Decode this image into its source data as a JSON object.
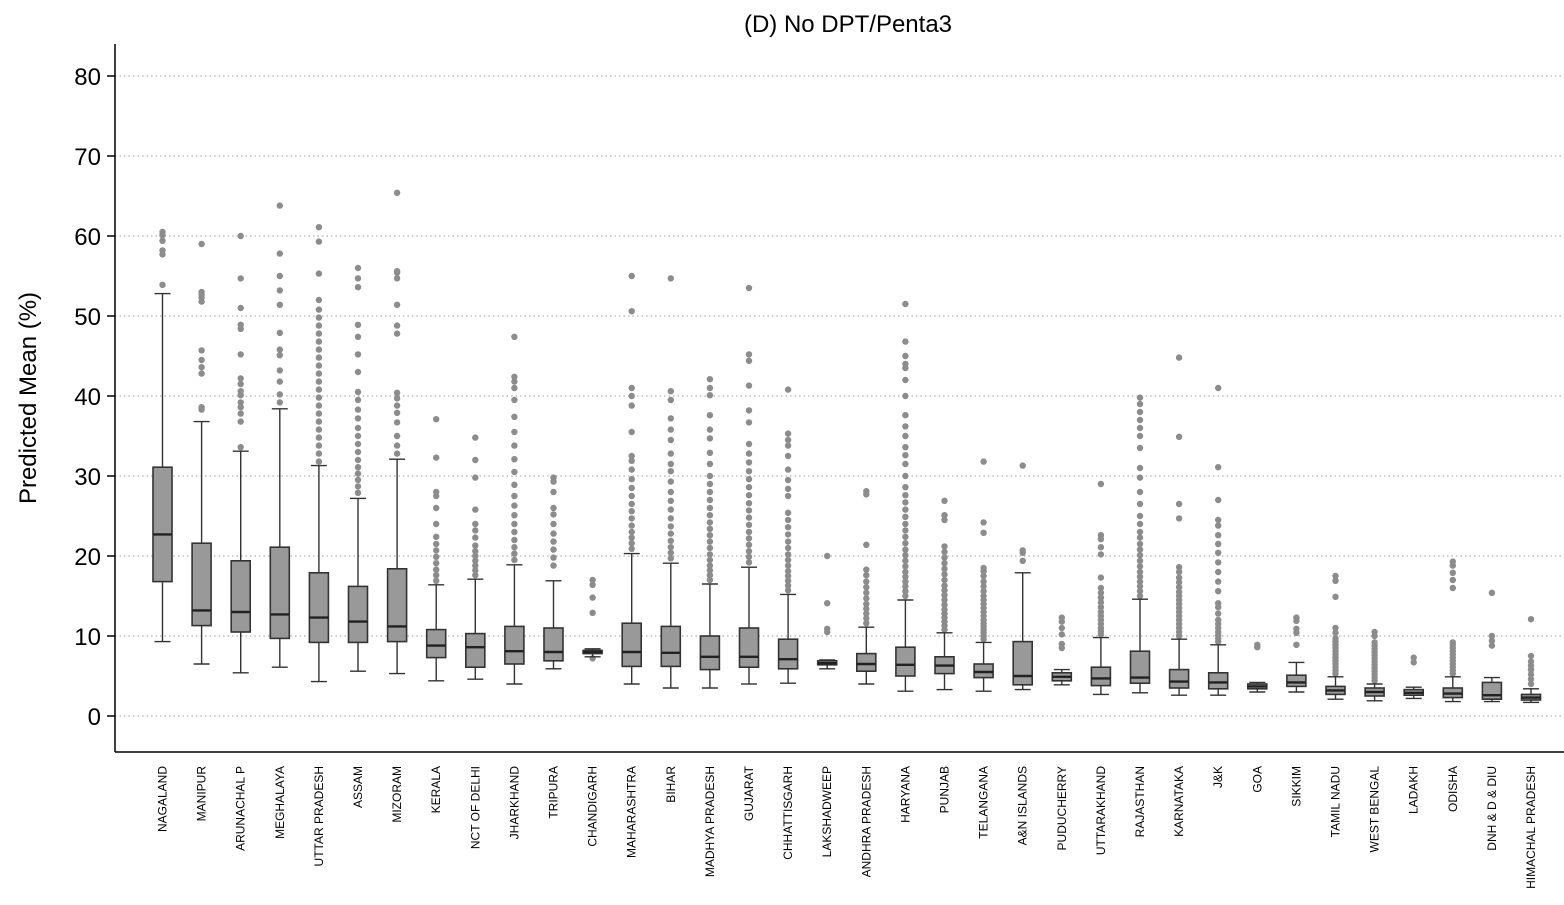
{
  "chart_data": {
    "type": "boxplot",
    "title": "(D) No DPT/Penta3",
    "xlabel": "",
    "ylabel": "Predicted Mean (%)",
    "ylim": [
      -4.5,
      84
    ],
    "yticks": [
      0,
      10,
      20,
      30,
      40,
      50,
      60,
      70,
      80
    ],
    "grid": "horizontal-dotted",
    "box_color": "#999999",
    "outlier_color": "#8c8c8c",
    "line_color": "#333333",
    "categories": [
      "NAGALAND",
      "MANIPUR",
      "ARUNACHAL P",
      "MEGHALAYA",
      "UTTAR PRADESH",
      "ASSAM",
      "MIZORAM",
      "KERALA",
      "NCT OF DELHI",
      "JHARKHAND",
      "TRIPURA",
      "CHANDIGARH",
      "MAHARASHTRA",
      "BIHAR",
      "MADHYA PRADESH",
      "GUJARAT",
      "CHHATTISGARH",
      "LAKSHADWEEP",
      "ANDHRA PRADESH",
      "HARYANA",
      "PUNJAB",
      "TELANGANA",
      "A&N ISLANDS",
      "PUDUCHERRY",
      "UTTARAKHAND",
      "RAJASTHAN",
      "KARNATAKA",
      "J&K",
      "GOA",
      "SIKKIM",
      "TAMIL NADU",
      "WEST BENGAL",
      "LADAKH",
      "ODISHA",
      "DNH & D & DIU",
      "HIMACHAL PRADESH"
    ],
    "boxes": [
      {
        "min": 9.3,
        "q1": 16.8,
        "median": 22.7,
        "q3": 31.1,
        "max": 52.8,
        "outliers": [
          53.9,
          57.7,
          58.2,
          59.4,
          60.1,
          60.5
        ]
      },
      {
        "min": 6.5,
        "q1": 11.3,
        "median": 13.2,
        "q3": 21.6,
        "max": 36.8,
        "outliers": [
          38.3,
          38.6,
          42.8,
          43.6,
          44.5,
          45.7,
          51.8,
          52.3,
          52.7,
          53.0,
          59.0
        ]
      },
      {
        "min": 5.4,
        "q1": 10.5,
        "median": 13.0,
        "q3": 19.4,
        "max": 33.1,
        "outliers": [
          33.6,
          36.8,
          37.8,
          38.6,
          39.2,
          40.1,
          40.6,
          41.5,
          42.2,
          45.2,
          48.4,
          48.9,
          51.0,
          54.7,
          60.0
        ]
      },
      {
        "min": 6.1,
        "q1": 9.7,
        "median": 12.7,
        "q3": 21.1,
        "max": 38.4,
        "outliers": [
          39.2,
          40.2,
          41.8,
          43.2,
          45.1,
          45.8,
          47.9,
          51.4,
          53.2,
          55.0,
          57.8,
          63.8
        ]
      },
      {
        "min": 4.3,
        "q1": 9.2,
        "median": 12.3,
        "q3": 17.9,
        "max": 31.3,
        "outliers": [
          31.8,
          32.8,
          33.8,
          34.8,
          35.8,
          36.8,
          37.8,
          38.8,
          39.8,
          40.8,
          41.8,
          42.8,
          43.8,
          44.8,
          45.8,
          46.8,
          47.8,
          48.8,
          49.8,
          50.8,
          52.0,
          55.3,
          59.3,
          61.1
        ]
      },
      {
        "min": 5.6,
        "q1": 9.2,
        "median": 11.8,
        "q3": 16.2,
        "max": 27.2,
        "outliers": [
          27.9,
          28.7,
          29.5,
          30.3,
          31.1,
          32.0,
          33.0,
          34.0,
          35.0,
          36.0,
          37.2,
          38.3,
          39.5,
          40.5,
          43.0,
          45.2,
          47.4,
          48.9,
          53.6,
          54.7,
          56.0
        ]
      },
      {
        "min": 5.3,
        "q1": 9.3,
        "median": 11.2,
        "q3": 18.4,
        "max": 32.1,
        "outliers": [
          32.8,
          33.8,
          35.0,
          36.7,
          37.9,
          38.8,
          39.7,
          40.4,
          47.8,
          48.8,
          51.4,
          54.7,
          55.4,
          55.6,
          65.4
        ]
      },
      {
        "min": 4.4,
        "q1": 7.3,
        "median": 8.8,
        "q3": 10.8,
        "max": 16.4,
        "outliers": [
          16.9,
          17.6,
          18.3,
          19.1,
          19.9,
          20.7,
          21.5,
          22.4,
          24.0,
          26.0,
          27.5,
          28.0,
          32.3,
          37.1
        ]
      },
      {
        "min": 4.6,
        "q1": 6.1,
        "median": 8.6,
        "q3": 10.3,
        "max": 17.1,
        "outliers": [
          17.6,
          18.2,
          18.8,
          19.4,
          20.0,
          20.6,
          21.3,
          22.3,
          23.2,
          24.0,
          25.8,
          29.8,
          32.0,
          34.8
        ]
      },
      {
        "min": 4.0,
        "q1": 6.5,
        "median": 8.1,
        "q3": 11.2,
        "max": 18.9,
        "outliers": [
          19.5,
          20.3,
          21.1,
          22.0,
          23.0,
          24.0,
          25.1,
          26.3,
          27.5,
          28.9,
          30.5,
          32.1,
          33.8,
          35.5,
          37.4,
          39.5,
          41.0,
          41.8,
          42.4,
          47.4
        ]
      },
      {
        "min": 5.9,
        "q1": 6.9,
        "median": 8.0,
        "q3": 11.0,
        "max": 16.9,
        "outliers": [
          18.8,
          19.8,
          20.8,
          21.8,
          22.8,
          24.0,
          25.2,
          26.0,
          28.0,
          29.3,
          29.8
        ]
      },
      {
        "min": 7.4,
        "q1": 7.8,
        "median": 8.0,
        "q3": 8.2,
        "max": 8.4,
        "outliers": [
          7.2,
          12.9,
          14.8,
          16.4,
          17.0
        ]
      },
      {
        "min": 4.0,
        "q1": 6.2,
        "median": 8.0,
        "q3": 11.6,
        "max": 20.3,
        "outliers": [
          20.9,
          21.6,
          22.3,
          23.0,
          23.8,
          24.7,
          25.6,
          26.5,
          27.5,
          28.5,
          29.6,
          30.8,
          31.9,
          32.5,
          35.5,
          38.8,
          40.0,
          41.0,
          50.6,
          55.0
        ]
      },
      {
        "min": 3.5,
        "q1": 6.2,
        "median": 7.9,
        "q3": 11.2,
        "max": 19.1,
        "outliers": [
          19.7,
          20.4,
          21.1,
          21.9,
          22.8,
          23.7,
          24.7,
          25.8,
          26.9,
          28.0,
          29.3,
          30.6,
          31.5,
          32.8,
          34.5,
          35.8,
          37.2,
          39.5,
          40.6,
          54.7
        ]
      },
      {
        "min": 3.5,
        "q1": 5.8,
        "median": 7.4,
        "q3": 10.0,
        "max": 16.5,
        "outliers": [
          17.0,
          17.6,
          18.2,
          18.8,
          19.5,
          20.2,
          21.0,
          21.8,
          22.6,
          23.4,
          24.2,
          25.1,
          26.0,
          27.0,
          28.0,
          29.0,
          30.0,
          31.5,
          32.9,
          34.7,
          35.8,
          37.6,
          40.1,
          41.0,
          42.1
        ]
      },
      {
        "min": 4.0,
        "q1": 6.1,
        "median": 7.4,
        "q3": 11.0,
        "max": 18.6,
        "outliers": [
          19.2,
          19.9,
          20.6,
          21.4,
          22.2,
          23.0,
          23.9,
          24.8,
          25.7,
          26.6,
          27.6,
          28.6,
          29.6,
          30.6,
          31.7,
          32.8,
          34.0,
          36.7,
          38.2,
          41.3,
          44.4,
          45.2,
          53.5
        ]
      },
      {
        "min": 4.1,
        "q1": 5.9,
        "median": 7.1,
        "q3": 9.6,
        "max": 15.2,
        "outliers": [
          15.7,
          16.3,
          16.9,
          17.5,
          18.1,
          18.8,
          19.5,
          20.2,
          21.0,
          21.8,
          22.7,
          23.6,
          24.5,
          25.4,
          27.5,
          28.4,
          29.5,
          30.8,
          32.5,
          33.8,
          34.5,
          35.3,
          40.8
        ]
      },
      {
        "min": 5.9,
        "q1": 6.4,
        "median": 6.6,
        "q3": 6.9,
        "max": 7.0,
        "outliers": [
          10.5,
          10.9,
          14.1,
          20.0
        ]
      },
      {
        "min": 4.0,
        "q1": 5.6,
        "median": 6.5,
        "q3": 7.8,
        "max": 11.1,
        "outliers": [
          11.6,
          12.2,
          12.8,
          13.4,
          14.0,
          14.7,
          15.4,
          16.1,
          16.8,
          17.6,
          18.3,
          21.4,
          27.7,
          28.1
        ]
      },
      {
        "min": 3.1,
        "q1": 5.0,
        "median": 6.4,
        "q3": 8.6,
        "max": 14.5,
        "outliers": [
          15.0,
          15.6,
          16.2,
          16.8,
          17.4,
          18.0,
          18.7,
          19.4,
          20.1,
          20.8,
          21.6,
          22.4,
          23.2,
          24.0,
          24.9,
          25.8,
          26.7,
          27.6,
          28.6,
          30.0,
          31.5,
          32.6,
          33.6,
          35.0,
          36.2,
          37.6,
          40.0,
          42.0,
          43.5,
          44.0,
          45.0,
          46.8,
          51.5
        ]
      },
      {
        "min": 3.3,
        "q1": 5.3,
        "median": 6.3,
        "q3": 7.4,
        "max": 10.4,
        "outliers": [
          10.8,
          11.3,
          11.8,
          12.3,
          12.8,
          13.3,
          13.9,
          14.5,
          15.1,
          15.7,
          16.3,
          17.0,
          17.7,
          18.4,
          19.1,
          19.8,
          20.5,
          21.2,
          24.5,
          25.1,
          26.9
        ]
      },
      {
        "min": 3.1,
        "q1": 4.8,
        "median": 5.5,
        "q3": 6.5,
        "max": 9.2,
        "outliers": [
          9.6,
          10.0,
          10.4,
          10.8,
          11.2,
          11.6,
          12.0,
          12.5,
          13.0,
          13.5,
          14.0,
          14.5,
          15.0,
          15.6,
          16.2,
          16.8,
          17.5,
          18.1,
          18.5,
          22.9,
          24.2,
          31.8
        ]
      },
      {
        "min": 3.3,
        "q1": 3.9,
        "median": 5.0,
        "q3": 9.3,
        "max": 17.9,
        "outliers": [
          19.4,
          20.4,
          20.7,
          31.3
        ]
      },
      {
        "min": 3.9,
        "q1": 4.4,
        "median": 4.9,
        "q3": 5.4,
        "max": 5.8,
        "outliers": [
          8.5,
          9.0,
          10.2,
          11.0,
          11.8,
          12.3
        ]
      },
      {
        "min": 2.7,
        "q1": 3.8,
        "median": 4.7,
        "q3": 6.1,
        "max": 9.8,
        "outliers": [
          10.2,
          10.6,
          11.0,
          11.5,
          12.0,
          12.5,
          13.0,
          13.6,
          14.2,
          14.8,
          15.4,
          16.0,
          17.3,
          20.2,
          21.1,
          22.1,
          22.6,
          29.0
        ]
      },
      {
        "min": 2.9,
        "q1": 4.1,
        "median": 4.8,
        "q3": 8.1,
        "max": 14.6,
        "outliers": [
          15.0,
          15.6,
          16.2,
          16.8,
          17.4,
          18.0,
          18.7,
          19.4,
          20.1,
          20.8,
          21.5,
          22.3,
          23.0,
          24.0,
          25.0,
          26.5,
          28.0,
          29.8,
          31.0,
          33.5,
          35.0,
          36.0,
          37.0,
          38.0,
          39.0,
          39.8
        ]
      },
      {
        "min": 2.6,
        "q1": 3.5,
        "median": 4.3,
        "q3": 5.8,
        "max": 9.6,
        "outliers": [
          10.0,
          10.5,
          11.0,
          11.5,
          12.0,
          12.5,
          13.0,
          13.5,
          14.0,
          14.5,
          15.0,
          15.5,
          16.1,
          16.7,
          17.3,
          18.0,
          18.6,
          24.7,
          26.5,
          34.9,
          44.8
        ]
      },
      {
        "min": 2.6,
        "q1": 3.4,
        "median": 4.2,
        "q3": 5.4,
        "max": 8.9,
        "outliers": [
          9.3,
          9.7,
          10.1,
          10.5,
          11.0,
          11.5,
          12.0,
          12.8,
          13.6,
          14.1,
          15.6,
          16.8,
          18.0,
          19.2,
          20.4,
          21.5,
          22.6,
          23.8,
          24.5,
          27.0,
          31.1,
          41.0
        ]
      },
      {
        "min": 3.0,
        "q1": 3.4,
        "median": 3.7,
        "q3": 4.0,
        "max": 4.2,
        "outliers": [
          8.6,
          8.9
        ]
      },
      {
        "min": 3.0,
        "q1": 3.7,
        "median": 4.2,
        "q3": 5.1,
        "max": 6.7,
        "outliers": [
          8.9,
          10.4,
          10.9,
          11.9,
          12.3
        ]
      },
      {
        "min": 2.1,
        "q1": 2.7,
        "median": 3.2,
        "q3": 3.7,
        "max": 4.9,
        "outliers": [
          5.3,
          5.7,
          6.1,
          6.5,
          6.9,
          7.3,
          7.7,
          8.1,
          8.5,
          8.9,
          9.3,
          9.7,
          10.4,
          11.0,
          14.9,
          16.9,
          17.5
        ]
      },
      {
        "min": 1.9,
        "q1": 2.5,
        "median": 3.0,
        "q3": 3.5,
        "max": 4.0,
        "outliers": [
          4.4,
          4.8,
          5.2,
          5.6,
          6.0,
          6.4,
          6.8,
          7.2,
          7.6,
          8.0,
          8.4,
          8.8,
          9.2,
          10.0,
          10.5
        ]
      },
      {
        "min": 2.2,
        "q1": 2.6,
        "median": 2.9,
        "q3": 3.3,
        "max": 3.6,
        "outliers": [
          6.7,
          7.3
        ]
      },
      {
        "min": 1.8,
        "q1": 2.3,
        "median": 2.8,
        "q3": 3.5,
        "max": 4.9,
        "outliers": [
          5.3,
          5.7,
          6.1,
          6.5,
          6.9,
          7.3,
          7.7,
          8.1,
          8.5,
          8.9,
          9.2,
          16.0,
          17.0,
          17.9,
          18.8,
          19.3
        ]
      },
      {
        "min": 1.8,
        "q1": 2.1,
        "median": 2.6,
        "q3": 4.2,
        "max": 4.8,
        "outliers": [
          8.8,
          9.4,
          10.0,
          15.4
        ]
      },
      {
        "min": 1.7,
        "q1": 2.0,
        "median": 2.3,
        "q3": 2.7,
        "max": 3.4,
        "outliers": [
          4.0,
          4.6,
          5.2,
          5.8,
          6.3,
          6.8,
          7.5,
          12.1
        ]
      }
    ]
  }
}
